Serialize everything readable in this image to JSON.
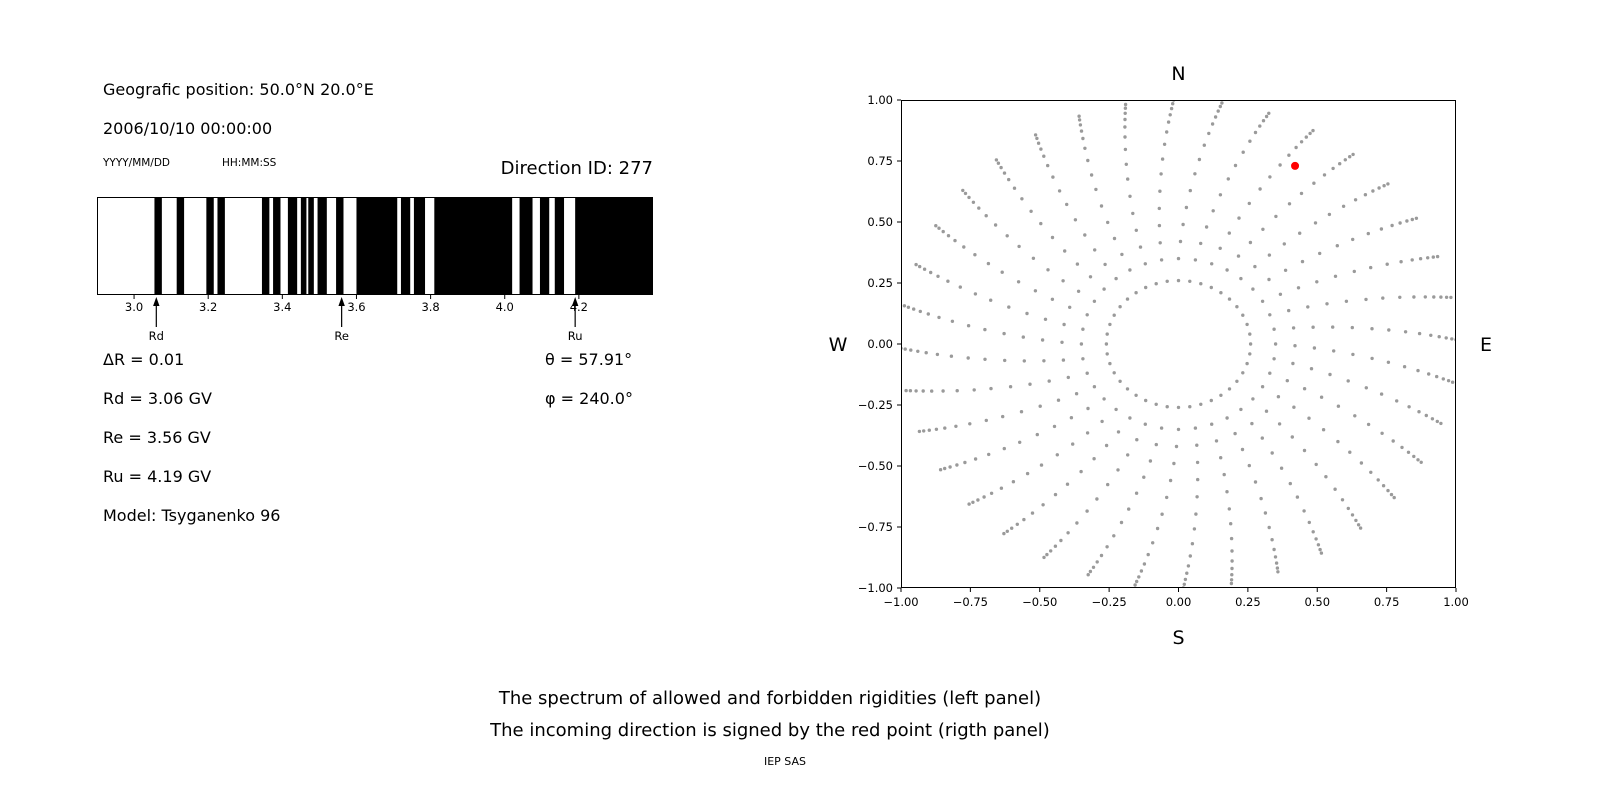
{
  "left_panel": {
    "geo_position": "Geografic position: 50.0°N 20.0°E",
    "datetime": "2006/10/10 00:00:00",
    "date_format": "YYYY/MM/DD",
    "time_format": "HH:MM:SS",
    "direction_id": "Direction ID: 277",
    "stats": {
      "delta_r": "ΔR = 0.01",
      "theta": "θ = 57.91°",
      "rd": "Rd = 3.06 GV",
      "phi": "φ = 240.0°",
      "re": "Re = 3.56 GV",
      "ru": "Ru = 4.19 GV",
      "model": "Model: Tsyganenko 96"
    }
  },
  "captions": {
    "line1": "The spectrum of allowed and forbidden rigidities (left panel)",
    "line2": "The incoming direction is signed by the red point (rigth panel)",
    "credit": "IEP SAS"
  },
  "chart_data": [
    {
      "type": "bar",
      "name": "rigidity_spectrum",
      "title": "",
      "xlabel": "",
      "xlim": [
        2.9,
        4.4
      ],
      "xticks": [
        3.0,
        3.2,
        3.4,
        3.6,
        3.8,
        4.0,
        4.2
      ],
      "band_color": "#000000",
      "background_color": "#ffffff",
      "band_meaning": {
        "black": "allowed rigidity",
        "white": "forbidden rigidity"
      },
      "allowed_bands_gv": [
        [
          3.055,
          3.075
        ],
        [
          3.115,
          3.135
        ],
        [
          3.195,
          3.215
        ],
        [
          3.225,
          3.245
        ],
        [
          3.345,
          3.365
        ],
        [
          3.375,
          3.395
        ],
        [
          3.415,
          3.44
        ],
        [
          3.45,
          3.465
        ],
        [
          3.47,
          3.485
        ],
        [
          3.495,
          3.52
        ],
        [
          3.545,
          3.565
        ],
        [
          3.6,
          3.71
        ],
        [
          3.72,
          3.745
        ],
        [
          3.755,
          3.785
        ],
        [
          3.81,
          4.02
        ],
        [
          4.04,
          4.075
        ],
        [
          4.095,
          4.12
        ],
        [
          4.135,
          4.16
        ],
        [
          4.19,
          4.4
        ]
      ],
      "markers": [
        {
          "label": "Rd",
          "value_gv": 3.06
        },
        {
          "label": "Re",
          "value_gv": 3.56
        },
        {
          "label": "Ru",
          "value_gv": 4.19
        }
      ]
    },
    {
      "type": "scatter",
      "name": "incoming_direction_map",
      "xlim": [
        -1.0,
        1.0
      ],
      "ylim": [
        -1.0,
        1.0
      ],
      "xticks": [
        -1.0,
        -0.75,
        -0.5,
        -0.25,
        0.0,
        0.25,
        0.5,
        0.75,
        1.0
      ],
      "yticks": [
        -1.0,
        -0.75,
        -0.5,
        -0.25,
        0.0,
        0.25,
        0.5,
        0.75,
        1.0
      ],
      "tick_decimals": 2,
      "compass": {
        "top": "N",
        "bottom": "S",
        "left": "W",
        "right": "E"
      },
      "grid_dots": {
        "color": "#9a9a9a",
        "dot_radius_px": 1.7,
        "inner_ring": {
          "radius": 0.26,
          "count": 40
        },
        "spokes": {
          "azimuth_start_deg": 0,
          "azimuth_step_deg": 10,
          "azimuth_count": 36,
          "radii": [
            0.35,
            0.42,
            0.49,
            0.56,
            0.63,
            0.7,
            0.76,
            0.82,
            0.87,
            0.91,
            0.94,
            0.965,
            0.985,
            1.0
          ],
          "curvature_deg": 9
        }
      },
      "red_point": {
        "x": 0.42,
        "y": 0.73,
        "color": "#ff0000",
        "radius_px": 4
      }
    }
  ]
}
